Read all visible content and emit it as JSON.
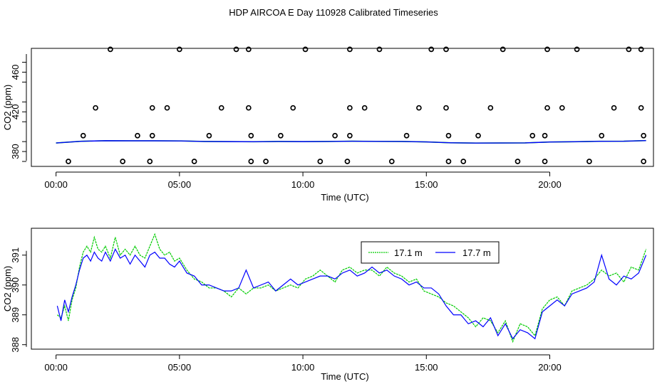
{
  "figure": {
    "title": "HDP AIRCOA E  Day 110928  Calibrated Timeseries"
  },
  "chart_data": [
    {
      "type": "scatter",
      "xlabel": "Time (UTC)",
      "ylabel": "CO2 (ppm)",
      "xlim": [
        -1,
        24.2
      ],
      "ylim": [
        365,
        484
      ],
      "x_ticks": [
        0,
        5,
        10,
        15,
        20
      ],
      "x_tick_labels": [
        "00:00",
        "05:00",
        "10:00",
        "15:00",
        "20:00"
      ],
      "y_ticks": [
        380,
        420,
        460
      ],
      "y_tick_labels": [
        "380",
        "420",
        "460"
      ],
      "grid": false,
      "colors": {
        "series_a": "#00cc00",
        "series_b": "#0000ff",
        "points": "#000000"
      },
      "calibration_points": {
        "name": "",
        "x": [
          0.5,
          2.2,
          2.7,
          3.8,
          5.0,
          5.6,
          7.3,
          7.8,
          7.9,
          8.5,
          10.1,
          10.7,
          11.8,
          11.9,
          13.1,
          13.6,
          15.2,
          15.8,
          15.9,
          16.5,
          18.1,
          18.7,
          19.8,
          19.9,
          21.1,
          21.6,
          23.2,
          23.7,
          23.8,
          1.1,
          3.3,
          3.9,
          6.2,
          7.9,
          9.1,
          11.3,
          11.9,
          14.2,
          15.9,
          17.1,
          19.3,
          19.8,
          22.1,
          23.8,
          1.6,
          3.9,
          4.5,
          6.7,
          7.8,
          9.6,
          11.9,
          12.5,
          14.7,
          15.8,
          17.6,
          19.9,
          20.5,
          22.6,
          23.7
        ],
        "y": [
          370,
          483,
          370,
          370,
          483,
          370,
          483,
          483,
          370,
          370,
          483,
          370,
          370,
          483,
          483,
          370,
          483,
          483,
          370,
          370,
          483,
          370,
          370,
          483,
          483,
          370,
          483,
          483,
          370,
          396,
          396,
          396,
          396,
          396,
          396,
          396,
          396,
          396,
          396,
          396,
          396,
          396,
          396,
          396,
          424,
          424,
          424,
          424,
          424,
          424,
          424,
          424,
          424,
          424,
          424,
          424,
          424,
          424,
          424
        ]
      },
      "baseline_series": [
        {
          "name": "",
          "x": [
            0,
            1,
            2,
            3,
            4,
            5,
            6,
            7,
            8,
            9,
            10,
            11,
            12,
            13,
            14,
            15,
            16,
            17,
            18,
            19,
            20,
            21,
            22,
            23,
            23.9
          ],
          "values": [
            388.6,
            390.3,
            390.9,
            390.8,
            390.8,
            390.7,
            390.1,
            390.0,
            389.9,
            390.1,
            390.0,
            390.1,
            390.4,
            390.2,
            390.1,
            389.7,
            388.8,
            388.5,
            388.6,
            388.7,
            389.6,
            389.9,
            390.3,
            390.4,
            391.0
          ]
        }
      ]
    },
    {
      "type": "line",
      "xlabel": "Time (UTC)",
      "ylabel": "CO2 (ppm)",
      "xlim": [
        -1,
        24.2
      ],
      "ylim": [
        387.85,
        391.9
      ],
      "x_ticks": [
        0,
        5,
        10,
        15,
        20
      ],
      "x_tick_labels": [
        "00:00",
        "05:00",
        "10:00",
        "15:00",
        "20:00"
      ],
      "y_ticks": [
        388,
        389,
        390,
        391
      ],
      "y_tick_labels": [
        "388",
        "389",
        "390",
        "391"
      ],
      "grid": false,
      "legend_position": "top-right",
      "series": [
        {
          "name": "17.1 m",
          "color": "#00cc00",
          "x": [
            0.05,
            0.2,
            0.35,
            0.5,
            0.65,
            0.8,
            0.95,
            1.1,
            1.25,
            1.4,
            1.55,
            1.7,
            1.85,
            2.0,
            2.2,
            2.4,
            2.6,
            2.8,
            3.0,
            3.2,
            3.4,
            3.6,
            3.8,
            4.0,
            4.2,
            4.4,
            4.6,
            4.8,
            5.0,
            5.3,
            5.6,
            5.9,
            6.2,
            6.5,
            6.8,
            7.1,
            7.4,
            7.7,
            8.0,
            8.3,
            8.6,
            8.9,
            9.2,
            9.5,
            9.8,
            10.1,
            10.4,
            10.7,
            11.0,
            11.3,
            11.6,
            11.9,
            12.2,
            12.5,
            12.8,
            13.1,
            13.4,
            13.7,
            14.0,
            14.3,
            14.6,
            14.9,
            15.2,
            15.5,
            15.8,
            16.1,
            16.4,
            16.7,
            17.0,
            17.3,
            17.6,
            17.9,
            18.2,
            18.5,
            18.8,
            19.1,
            19.4,
            19.7,
            20.0,
            20.3,
            20.6,
            20.9,
            21.2,
            21.5,
            21.8,
            22.1,
            22.4,
            22.7,
            23.0,
            23.3,
            23.6,
            23.9
          ],
          "values": [
            389.0,
            388.9,
            389.3,
            388.8,
            389.5,
            389.9,
            390.6,
            391.1,
            391.3,
            391.1,
            391.6,
            391.2,
            391.1,
            391.3,
            390.9,
            391.6,
            391.0,
            391.2,
            391.0,
            391.3,
            391.0,
            390.9,
            391.3,
            391.7,
            391.2,
            391.0,
            391.1,
            390.8,
            390.9,
            390.5,
            390.2,
            390.1,
            389.9,
            389.9,
            389.8,
            389.6,
            389.9,
            389.7,
            389.9,
            389.9,
            390.0,
            389.8,
            389.9,
            390.0,
            389.9,
            390.2,
            390.3,
            390.5,
            390.3,
            390.1,
            390.5,
            390.6,
            390.4,
            390.5,
            390.5,
            390.3,
            390.6,
            390.4,
            390.3,
            390.1,
            390.2,
            389.8,
            389.7,
            389.6,
            389.4,
            389.3,
            389.1,
            388.9,
            388.6,
            388.9,
            388.8,
            388.4,
            388.8,
            388.1,
            388.7,
            388.6,
            388.3,
            389.2,
            389.5,
            389.6,
            389.3,
            389.8,
            389.9,
            390.0,
            390.2,
            390.5,
            390.3,
            390.4,
            390.1,
            390.6,
            390.5,
            391.2
          ]
        },
        {
          "name": "17.7 m",
          "color": "#0000ff",
          "x": [
            0.05,
            0.2,
            0.35,
            0.5,
            0.65,
            0.8,
            0.95,
            1.1,
            1.25,
            1.4,
            1.55,
            1.7,
            1.85,
            2.0,
            2.2,
            2.4,
            2.6,
            2.8,
            3.0,
            3.2,
            3.4,
            3.6,
            3.8,
            4.0,
            4.2,
            4.4,
            4.6,
            4.8,
            5.0,
            5.3,
            5.6,
            5.9,
            6.2,
            6.5,
            6.8,
            7.1,
            7.4,
            7.7,
            8.0,
            8.3,
            8.6,
            8.9,
            9.2,
            9.5,
            9.8,
            10.1,
            10.4,
            10.7,
            11.0,
            11.3,
            11.6,
            11.9,
            12.2,
            12.5,
            12.8,
            13.1,
            13.4,
            13.7,
            14.0,
            14.3,
            14.6,
            14.9,
            15.2,
            15.5,
            15.8,
            16.1,
            16.4,
            16.7,
            17.0,
            17.3,
            17.6,
            17.9,
            18.2,
            18.5,
            18.8,
            19.1,
            19.4,
            19.7,
            20.0,
            20.3,
            20.6,
            20.9,
            21.2,
            21.5,
            21.8,
            22.1,
            22.4,
            22.7,
            23.0,
            23.3,
            23.6,
            23.9
          ],
          "values": [
            389.3,
            388.8,
            389.5,
            389.1,
            389.6,
            390.0,
            390.5,
            390.9,
            391.0,
            390.8,
            391.1,
            390.9,
            390.8,
            391.1,
            390.8,
            391.2,
            390.9,
            391.0,
            390.7,
            391.0,
            390.8,
            390.6,
            391.0,
            391.1,
            390.9,
            390.9,
            390.7,
            390.6,
            390.8,
            390.4,
            390.3,
            390.0,
            390.0,
            389.9,
            389.8,
            389.8,
            389.9,
            390.5,
            389.9,
            390.0,
            390.1,
            389.8,
            390.0,
            390.2,
            390.0,
            390.1,
            390.2,
            390.3,
            390.3,
            390.2,
            390.4,
            390.5,
            390.3,
            390.4,
            390.6,
            390.4,
            390.5,
            390.3,
            390.2,
            390.0,
            390.1,
            389.9,
            389.9,
            389.7,
            389.3,
            389.0,
            389.0,
            388.7,
            388.8,
            388.6,
            388.9,
            388.3,
            388.7,
            388.2,
            388.5,
            388.4,
            388.2,
            389.1,
            389.3,
            389.5,
            389.3,
            389.7,
            389.8,
            389.9,
            390.1,
            391.0,
            390.2,
            390.0,
            390.3,
            390.2,
            390.4,
            391.0
          ]
        }
      ]
    }
  ]
}
